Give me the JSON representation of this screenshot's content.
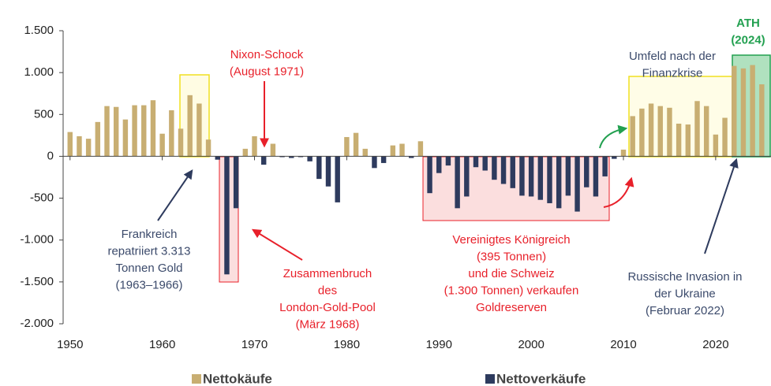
{
  "chart_data": {
    "type": "bar",
    "x": [
      1950,
      1951,
      1952,
      1953,
      1954,
      1955,
      1956,
      1957,
      1958,
      1959,
      1960,
      1961,
      1962,
      1963,
      1964,
      1965,
      1966,
      1967,
      1968,
      1969,
      1970,
      1971,
      1972,
      1973,
      1974,
      1975,
      1976,
      1977,
      1978,
      1979,
      1980,
      1981,
      1982,
      1983,
      1984,
      1985,
      1986,
      1987,
      1988,
      1989,
      1990,
      1991,
      1992,
      1993,
      1994,
      1995,
      1996,
      1997,
      1998,
      1999,
      2000,
      2001,
      2002,
      2003,
      2004,
      2005,
      2006,
      2007,
      2008,
      2009,
      2010,
      2011,
      2012,
      2013,
      2014,
      2015,
      2016,
      2017,
      2018,
      2019,
      2020,
      2021,
      2022,
      2023,
      2024,
      2025
    ],
    "series": [
      {
        "name": "Nettokäufe",
        "color": "#c8ae72",
        "values": [
          290,
          240,
          210,
          410,
          600,
          590,
          440,
          610,
          610,
          670,
          270,
          550,
          330,
          730,
          630,
          200,
          null,
          null,
          null,
          90,
          240,
          null,
          150,
          null,
          null,
          null,
          null,
          null,
          null,
          null,
          230,
          280,
          90,
          null,
          null,
          130,
          150,
          null,
          180,
          null,
          null,
          null,
          null,
          null,
          null,
          null,
          null,
          null,
          null,
          null,
          null,
          null,
          null,
          null,
          null,
          null,
          null,
          null,
          null,
          null,
          80,
          480,
          570,
          630,
          600,
          580,
          390,
          380,
          660,
          600,
          260,
          460,
          1080,
          1050,
          1090,
          860
        ]
      },
      {
        "name": "Nettoverkäufe",
        "color": "#2e3b5e",
        "values": [
          null,
          null,
          null,
          null,
          null,
          null,
          null,
          null,
          null,
          null,
          null,
          null,
          null,
          null,
          null,
          null,
          -40,
          -1410,
          -620,
          null,
          null,
          -100,
          null,
          -10,
          -20,
          -10,
          -60,
          -270,
          -360,
          -550,
          null,
          null,
          null,
          -140,
          -80,
          null,
          null,
          -20,
          null,
          -440,
          -200,
          -110,
          -620,
          -480,
          -130,
          -170,
          -280,
          -330,
          -380,
          -470,
          -480,
          -520,
          -560,
          -620,
          -470,
          -660,
          -370,
          -480,
          -240,
          -30,
          null,
          null,
          null,
          null,
          null,
          null,
          null,
          null,
          null,
          null,
          null,
          null,
          null,
          null,
          null,
          null
        ]
      }
    ],
    "xlim": [
      1949.25,
      2026
    ],
    "xticks": [
      1950,
      1960,
      1970,
      1980,
      1990,
      2000,
      2010,
      2020
    ],
    "ylim": [
      -2000,
      1500
    ],
    "yticks": [
      {
        "value": 1500,
        "label": "1.500"
      },
      {
        "value": 1000,
        "label": "1.000"
      },
      500,
      0,
      -500,
      {
        "value": -1000,
        "label": "-1.000"
      },
      {
        "value": -1500,
        "label": "-1.500"
      },
      {
        "value": -2000,
        "label": "-2.000"
      }
    ],
    "annotations": [
      {
        "lines": [
          "Nixon-Schock",
          "(August 1971)"
        ],
        "color": "#e8202a"
      },
      {
        "lines": [
          "Frankreich",
          "repatriiert 3.313",
          "Tonnen Gold",
          "(1963–1966)"
        ],
        "color": "#3b4a6b"
      },
      {
        "lines": [
          "Zusammenbruch",
          "des",
          "London-Gold-Pool",
          "(März 1968)"
        ],
        "color": "#e8202a"
      },
      {
        "lines": [
          "Vereinigtes Königreich",
          "(395 Tonnen)",
          "und die Schweiz",
          "(1.300 Tonnen) verkaufen",
          "Goldreserven"
        ],
        "color": "#e8202a"
      },
      {
        "lines": [
          "Umfeld nach der",
          "Finanzkrise"
        ],
        "color": "#3b4a6b"
      },
      {
        "lines": [
          "ATH",
          "(2024)"
        ],
        "color": "#22a050"
      },
      {
        "lines": [
          "Russische Invasion in",
          "der Ukraine",
          "(Februar 2022)"
        ],
        "color": "#3b4a6b"
      }
    ]
  }
}
